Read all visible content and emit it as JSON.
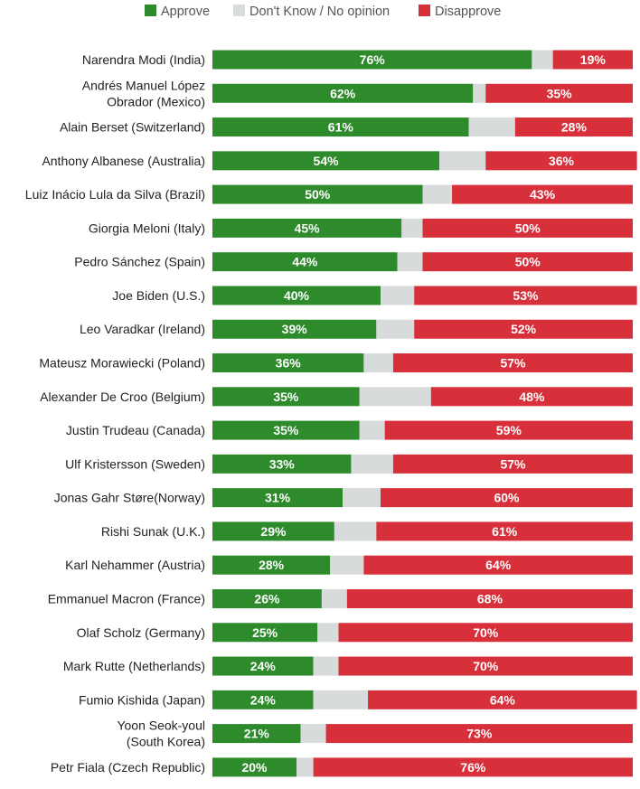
{
  "chart_data": {
    "type": "bar",
    "orientation": "horizontal",
    "stacked": true,
    "legend_position": "top",
    "grid": false,
    "xlim": [
      0,
      100
    ],
    "value_format": "{v}%",
    "series": [
      {
        "name": "Approve",
        "color": "#2e8b2c",
        "show_labels": true,
        "values": [
          76,
          62,
          61,
          54,
          50,
          45,
          44,
          40,
          39,
          36,
          35,
          35,
          33,
          31,
          29,
          28,
          26,
          25,
          24,
          24,
          21,
          20
        ]
      },
      {
        "name": "Don't Know / No opinion",
        "color": "#d8dbdc",
        "show_labels": false,
        "values": [
          5,
          3,
          11,
          11,
          7,
          5,
          6,
          8,
          9,
          7,
          17,
          6,
          10,
          9,
          10,
          8,
          6,
          5,
          6,
          13,
          6,
          4
        ]
      },
      {
        "name": "Disapprove",
        "color": "#d8303a",
        "show_labels": true,
        "values": [
          19,
          35,
          28,
          36,
          43,
          50,
          50,
          53,
          52,
          57,
          48,
          59,
          57,
          60,
          61,
          64,
          68,
          70,
          70,
          64,
          73,
          76
        ]
      }
    ],
    "categories": [
      [
        "Narendra Modi (India)"
      ],
      [
        "Andrés Manuel López",
        "Obrador (Mexico)"
      ],
      [
        "Alain Berset (Switzerland)"
      ],
      [
        "Anthony Albanese (Australia)"
      ],
      [
        "Luiz Inácio Lula da Silva (Brazil)"
      ],
      [
        "Giorgia Meloni (Italy)"
      ],
      [
        "Pedro Sánchez (Spain)"
      ],
      [
        "Joe Biden (U.S.)"
      ],
      [
        "Leo Varadkar (Ireland)"
      ],
      [
        "Mateusz Morawiecki (Poland)"
      ],
      [
        "Alexander De Croo (Belgium)"
      ],
      [
        "Justin Trudeau (Canada)"
      ],
      [
        "Ulf Kristersson (Sweden)"
      ],
      [
        "Jonas Gahr Støre(Norway)"
      ],
      [
        "Rishi Sunak (U.K.)"
      ],
      [
        "Karl Nehammer (Austria)"
      ],
      [
        "Emmanuel Macron (France)"
      ],
      [
        "Olaf Scholz (Germany)"
      ],
      [
        "Mark Rutte (Netherlands)"
      ],
      [
        "Fumio Kishida (Japan)"
      ],
      [
        "Yoon Seok-youl",
        "(South Korea)"
      ],
      [
        "Petr Fiala (Czech Republic)"
      ]
    ]
  }
}
